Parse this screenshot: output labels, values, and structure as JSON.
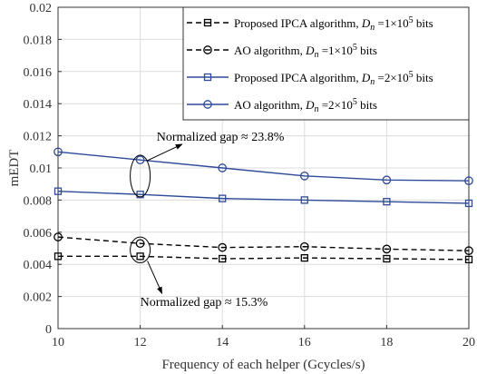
{
  "chart_data": {
    "type": "line",
    "xlabel": "Frequency of each helper (Gcycles/s)",
    "ylabel": "mEDT",
    "xlim": [
      10,
      20
    ],
    "ylim": [
      0,
      0.02
    ],
    "x_ticks": [
      "10",
      "12",
      "14",
      "16",
      "18",
      "20"
    ],
    "y_ticks": [
      "0",
      "0.002",
      "0.004",
      "0.006",
      "0.008",
      "0.01",
      "0.012",
      "0.014",
      "0.016",
      "0.018",
      "0.02"
    ],
    "grid": true,
    "legend_placement": "top-right",
    "x": [
      10,
      12,
      14,
      16,
      18,
      20
    ],
    "series": [
      {
        "name": "Proposed IPCA algorithm, D_n = 1×10^5 bits",
        "legend": {
          "pre": "Proposed IPCA algorithm, ",
          "var": "D",
          "sub": "n",
          "mid": " =1×10",
          "sup": "5",
          "post": " bits"
        },
        "values": [
          0.0045,
          0.0045,
          0.00435,
          0.0044,
          0.00435,
          0.0043
        ],
        "color": "#000000",
        "line": "dashed",
        "marker": "square"
      },
      {
        "name": "AO algorithm, D_n = 1×10^5 bits",
        "legend": {
          "pre": "AO algorithm, ",
          "var": "D",
          "sub": "n",
          "mid": " =1×10",
          "sup": "5",
          "post": " bits"
        },
        "values": [
          0.0057,
          0.0053,
          0.00505,
          0.0051,
          0.00495,
          0.00485
        ],
        "color": "#000000",
        "line": "dashed",
        "marker": "circle"
      },
      {
        "name": "Proposed IPCA algorithm, D_n = 2×10^5 bits",
        "legend": {
          "pre": "Proposed IPCA algorithm, ",
          "var": "D",
          "sub": "n",
          "mid": " =2×10",
          "sup": "5",
          "post": " bits"
        },
        "values": [
          0.00855,
          0.00835,
          0.0081,
          0.008,
          0.0079,
          0.0078
        ],
        "color": "#2e4a9a",
        "line": "solid",
        "marker": "square"
      },
      {
        "name": "AO algorithm, D_n = 2×10^5 bits",
        "legend": {
          "pre": "AO algorithm, ",
          "var": "D",
          "sub": "n",
          "mid": " =2×10",
          "sup": "5",
          "post": " bits"
        },
        "values": [
          0.011,
          0.0105,
          0.01,
          0.0095,
          0.00925,
          0.0092
        ],
        "color": "#2e4a9a",
        "line": "solid",
        "marker": "circle"
      }
    ],
    "annotations": [
      {
        "text": "Normalized gap ≈ 23.8%",
        "at_x": 12,
        "ellipse_y": [
          0.0082,
          0.0108
        ],
        "label_at": [
          12.4,
          0.0117
        ]
      },
      {
        "text": "Normalized gap ≈ 15.3%",
        "at_x": 12,
        "ellipse_y": [
          0.0041,
          0.0057
        ],
        "label_at": [
          12.0,
          0.0014
        ]
      }
    ]
  }
}
